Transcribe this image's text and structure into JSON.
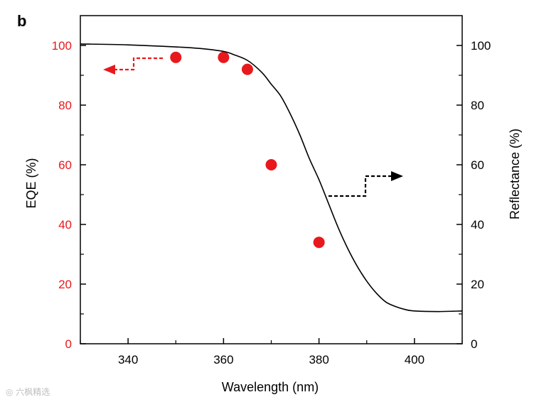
{
  "panel_label": "b",
  "watermark": "◎ 六枫精选",
  "colors": {
    "eqe": "#e8191c",
    "reflectance": "#000000",
    "axis": "#000000"
  },
  "chart_data": {
    "type": "scatter",
    "xlabel": "Wavelength (nm)",
    "ylabel_left": "EQE (%)",
    "ylabel_right": "Reflectance (%)",
    "xlim": [
      330,
      410
    ],
    "ylim_left": [
      0,
      110
    ],
    "ylim_right": [
      0,
      110
    ],
    "x_ticks": [
      340,
      360,
      380,
      400
    ],
    "y_ticks_left": [
      0,
      20,
      40,
      60,
      80,
      100
    ],
    "y_ticks_right": [
      0,
      20,
      40,
      60,
      80,
      100
    ],
    "grid": false,
    "series": [
      {
        "type": "scatter",
        "axis": "left",
        "color": "#e8191c",
        "points": [
          {
            "x": 350,
            "y": 96
          },
          {
            "x": 360,
            "y": 96
          },
          {
            "x": 365,
            "y": 92
          },
          {
            "x": 370,
            "y": 60
          },
          {
            "x": 380,
            "y": 34
          }
        ]
      },
      {
        "type": "line",
        "axis": "right",
        "color": "#000000",
        "points": [
          {
            "x": 330,
            "y": 100.5
          },
          {
            "x": 340,
            "y": 100.2
          },
          {
            "x": 350,
            "y": 99.5
          },
          {
            "x": 355,
            "y": 99
          },
          {
            "x": 360,
            "y": 98
          },
          {
            "x": 362,
            "y": 97
          },
          {
            "x": 365,
            "y": 95
          },
          {
            "x": 368,
            "y": 91
          },
          {
            "x": 370,
            "y": 87
          },
          {
            "x": 372,
            "y": 83
          },
          {
            "x": 374,
            "y": 77
          },
          {
            "x": 376,
            "y": 70
          },
          {
            "x": 378,
            "y": 62
          },
          {
            "x": 380,
            "y": 55
          },
          {
            "x": 382,
            "y": 47
          },
          {
            "x": 384,
            "y": 39
          },
          {
            "x": 386,
            "y": 32
          },
          {
            "x": 388,
            "y": 26
          },
          {
            "x": 390,
            "y": 21
          },
          {
            "x": 392,
            "y": 17
          },
          {
            "x": 394,
            "y": 14
          },
          {
            "x": 396,
            "y": 12.5
          },
          {
            "x": 398,
            "y": 11.5
          },
          {
            "x": 400,
            "y": 11
          },
          {
            "x": 405,
            "y": 10.8
          },
          {
            "x": 410,
            "y": 11
          }
        ]
      }
    ],
    "annotations": [
      {
        "type": "dashed-step-arrow",
        "direction": "left",
        "color": "#e8191c",
        "target_axis": "left"
      },
      {
        "type": "dashed-step-arrow",
        "direction": "right",
        "color": "#000000",
        "target_axis": "right"
      }
    ]
  }
}
